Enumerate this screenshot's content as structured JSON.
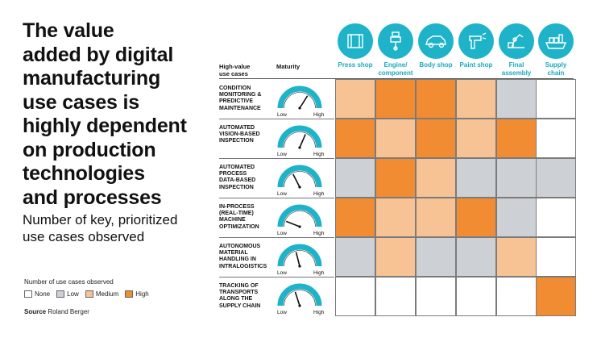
{
  "title": [
    "The value",
    "added by digital",
    "manufacturing",
    "use cases is",
    "highly dependent",
    "on production",
    "technologies",
    "and processes"
  ],
  "subtitle": [
    "Number of key, prioritized",
    "use cases observed"
  ],
  "legend": {
    "title": "Number of use cases observed",
    "items": [
      {
        "label": "None",
        "color": "#ffffff"
      },
      {
        "label": "Low",
        "color": "#cdd1d5"
      },
      {
        "label": "Medium",
        "color": "#f7c394"
      },
      {
        "label": "High",
        "color": "#f28c33"
      }
    ]
  },
  "source": {
    "label": "Source",
    "text": "Roland Berger"
  },
  "headers": {
    "use_cases": [
      "High-value",
      "use cases"
    ],
    "maturity": "Maturity"
  },
  "gauge_labels": {
    "low": "Low",
    "high": "High"
  },
  "colors": {
    "accent": "#1fb3c9",
    "none": "#ffffff",
    "low": "#cdd1d5",
    "medium": "#f7c394",
    "high": "#f28c33"
  },
  "chart_data": {
    "type": "heatmap",
    "columns": [
      {
        "label": [
          "Press shop"
        ],
        "icon": "press-shop-icon"
      },
      {
        "label": [
          "Engine/",
          "component"
        ],
        "icon": "engine-icon"
      },
      {
        "label": [
          "Body shop"
        ],
        "icon": "car-body-icon"
      },
      {
        "label": [
          "Paint shop"
        ],
        "icon": "spray-gun-icon"
      },
      {
        "label": [
          "Final",
          "assembly"
        ],
        "icon": "assembly-robot-icon"
      },
      {
        "label": [
          "Supply",
          "chain"
        ],
        "icon": "cargo-ship-icon"
      }
    ],
    "rows": [
      {
        "label": [
          "CONDITION",
          "MONITORING &",
          "PREDICTIVE",
          "MAINTENANCE"
        ],
        "maturity": 0.68,
        "values": [
          "medium",
          "high",
          "high",
          "medium",
          "low",
          "none"
        ]
      },
      {
        "label": [
          "AUTOMATED",
          "VISION-BASED",
          "INSPECTION"
        ],
        "maturity": 0.63,
        "values": [
          "high",
          "medium",
          "high",
          "medium",
          "high",
          "none"
        ]
      },
      {
        "label": [
          "AUTOMATED",
          "PROCESS",
          "DATA-BASED",
          "INSPECTION"
        ],
        "maturity": 0.35,
        "values": [
          "low",
          "high",
          "medium",
          "low",
          "low",
          "low"
        ]
      },
      {
        "label": [
          "IN-PROCESS",
          "(REAL-TIME)",
          "MACHINE",
          "OPTIMIZATION"
        ],
        "maturity": 0.12,
        "values": [
          "high",
          "medium",
          "medium",
          "high",
          "low",
          "none"
        ]
      },
      {
        "label": [
          "AUTONOMOUS",
          "MATERIAL",
          "HANDLING IN",
          "INTRALOGISTICS"
        ],
        "maturity": 0.42,
        "values": [
          "low",
          "medium",
          "low",
          "low",
          "medium",
          "none"
        ]
      },
      {
        "label": [
          "TRACKING OF",
          "TRANSPORTS",
          "ALONG THE",
          "SUPPLY CHAIN"
        ],
        "maturity": 0.4,
        "values": [
          "none",
          "none",
          "none",
          "none",
          "none",
          "high"
        ]
      }
    ]
  }
}
